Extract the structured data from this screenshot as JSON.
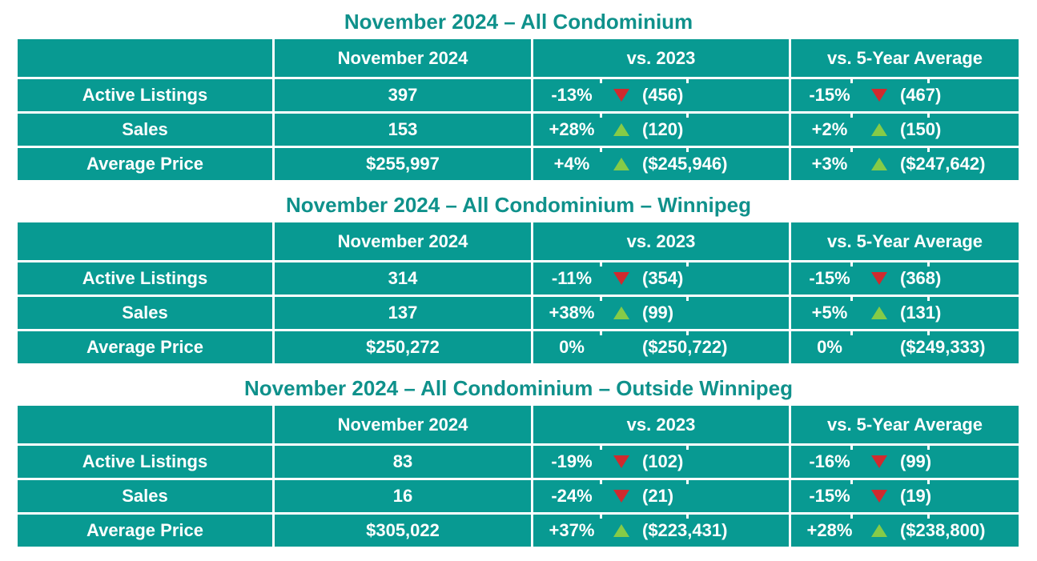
{
  "colors": {
    "table_cell_teal": "#089a92",
    "title_teal": "#0f918b",
    "arrow_down_red": "#d02a2e",
    "arrow_up_green": "#86cb47",
    "text_white": "#ffffff"
  },
  "tables": [
    {
      "title": "November 2024 – All Condominium",
      "columns": [
        "",
        "November 2024",
        "vs. 2023",
        "vs. 5-Year Average"
      ],
      "rows": [
        {
          "label": "Active Listings",
          "current": "397",
          "vs2023": {
            "pct": "-13%",
            "dir": "down",
            "value": "(456)"
          },
          "vs5yr": {
            "pct": "-15%",
            "dir": "down",
            "value": "(467)"
          }
        },
        {
          "label": "Sales",
          "current": "153",
          "vs2023": {
            "pct": "+28%",
            "dir": "up",
            "value": "(120)"
          },
          "vs5yr": {
            "pct": "+2%",
            "dir": "up",
            "value": "(150)"
          }
        },
        {
          "label": "Average Price",
          "current": "$255,997",
          "vs2023": {
            "pct": "+4%",
            "dir": "up",
            "value": "($245,946)"
          },
          "vs5yr": {
            "pct": "+3%",
            "dir": "up",
            "value": "($247,642)"
          }
        }
      ]
    },
    {
      "title": "November 2024 – All Condominium – Winnipeg",
      "columns": [
        "",
        "November 2024",
        "vs. 2023",
        "vs. 5-Year Average"
      ],
      "rows": [
        {
          "label": "Active Listings",
          "current": "314",
          "vs2023": {
            "pct": "-11%",
            "dir": "down",
            "value": "(354)"
          },
          "vs5yr": {
            "pct": "-15%",
            "dir": "down",
            "value": "(368)"
          }
        },
        {
          "label": "Sales",
          "current": "137",
          "vs2023": {
            "pct": "+38%",
            "dir": "up",
            "value": "(99)"
          },
          "vs5yr": {
            "pct": "+5%",
            "dir": "up",
            "value": "(131)"
          }
        },
        {
          "label": "Average Price",
          "current": "$250,272",
          "vs2023": {
            "pct": "0%",
            "dir": "none",
            "value": "($250,722)"
          },
          "vs5yr": {
            "pct": "0%",
            "dir": "none",
            "value": "($249,333)"
          }
        }
      ]
    },
    {
      "title": "November 2024 – All Condominium – Outside Winnipeg",
      "columns": [
        "",
        "November 2024",
        "vs. 2023",
        "vs. 5-Year Average"
      ],
      "rows": [
        {
          "label": "Active Listings",
          "current": "83",
          "vs2023": {
            "pct": "-19%",
            "dir": "down",
            "value": "(102)"
          },
          "vs5yr": {
            "pct": "-16%",
            "dir": "down",
            "value": "(99)"
          }
        },
        {
          "label": "Sales",
          "current": "16",
          "vs2023": {
            "pct": "-24%",
            "dir": "down",
            "value": "(21)"
          },
          "vs5yr": {
            "pct": "-15%",
            "dir": "down",
            "value": "(19)"
          }
        },
        {
          "label": "Average Price",
          "current": "$305,022",
          "vs2023": {
            "pct": "+37%",
            "dir": "up",
            "value": "($223,431)"
          },
          "vs5yr": {
            "pct": "+28%",
            "dir": "up",
            "value": "($238,800)"
          }
        }
      ]
    }
  ]
}
